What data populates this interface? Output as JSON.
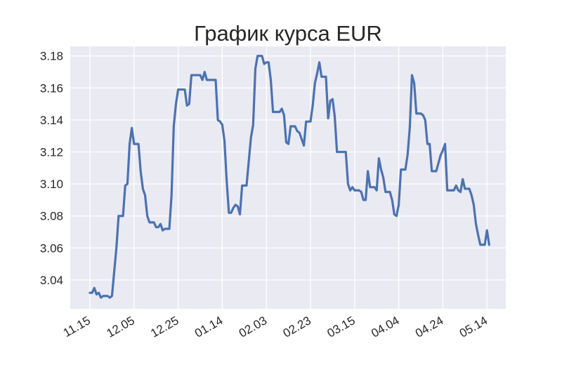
{
  "chart_data": {
    "type": "line",
    "title": "График курса EUR",
    "xlabel": "",
    "ylabel": "",
    "x_tick_labels": [
      "11.15",
      "12.05",
      "12.25",
      "01.14",
      "02.03",
      "02.23",
      "03.15",
      "04.04",
      "04.24",
      "05.14"
    ],
    "y_tick_labels": [
      "3.04",
      "3.06",
      "3.08",
      "3.10",
      "3.12",
      "3.14",
      "3.16",
      "3.18"
    ],
    "y_ticks": [
      3.04,
      3.06,
      3.08,
      3.1,
      3.12,
      3.14,
      3.16,
      3.18
    ],
    "ylim": [
      3.022,
      3.186
    ],
    "grid": true,
    "style": "seaborn-darkgrid",
    "colors": {
      "line": "#4c72b0",
      "background": "#eaeaf2",
      "grid": "#ffffff"
    },
    "series": [
      {
        "x": [
          "2022-11-15",
          "2022-11-16",
          "2022-11-17",
          "2022-11-18",
          "2022-11-19",
          "2022-11-20",
          "2022-11-21",
          "2022-11-22",
          "2022-11-23",
          "2022-11-24",
          "2022-11-25",
          "2022-11-26",
          "2022-11-27",
          "2022-11-28",
          "2022-11-29",
          "2022-11-30",
          "2022-12-01",
          "2022-12-02",
          "2022-12-03",
          "2022-12-04",
          "2022-12-05",
          "2022-12-06",
          "2022-12-07",
          "2022-12-08",
          "2022-12-09",
          "2022-12-10",
          "2022-12-11",
          "2022-12-12",
          "2022-12-13",
          "2022-12-14",
          "2022-12-15",
          "2022-12-16",
          "2022-12-17",
          "2022-12-18",
          "2022-12-19",
          "2022-12-20",
          "2022-12-21",
          "2022-12-22",
          "2022-12-23",
          "2022-12-24",
          "2022-12-25",
          "2022-12-26",
          "2022-12-27",
          "2022-12-28",
          "2022-12-29",
          "2022-12-30",
          "2022-12-31",
          "2023-01-01",
          "2023-01-02",
          "2023-01-03",
          "2023-01-04",
          "2023-01-05",
          "2023-01-06",
          "2023-01-07",
          "2023-01-08",
          "2023-01-09",
          "2023-01-10",
          "2023-01-11",
          "2023-01-12",
          "2023-01-13",
          "2023-01-14",
          "2023-01-15",
          "2023-01-16",
          "2023-01-17",
          "2023-01-18",
          "2023-01-19",
          "2023-01-20",
          "2023-01-21",
          "2023-01-22",
          "2023-01-23",
          "2023-01-24",
          "2023-01-25",
          "2023-01-26",
          "2023-01-27",
          "2023-01-28",
          "2023-01-29",
          "2023-01-30",
          "2023-01-31",
          "2023-02-01",
          "2023-02-02",
          "2023-02-03",
          "2023-02-04",
          "2023-02-05",
          "2023-02-06",
          "2023-02-07",
          "2023-02-08",
          "2023-02-09",
          "2023-02-10",
          "2023-02-11",
          "2023-02-12",
          "2023-02-13",
          "2023-02-14",
          "2023-02-15",
          "2023-02-16",
          "2023-02-17",
          "2023-02-18",
          "2023-02-19",
          "2023-02-20",
          "2023-02-21",
          "2023-02-22",
          "2023-02-23",
          "2023-02-24",
          "2023-02-25",
          "2023-02-26",
          "2023-02-27",
          "2023-02-28",
          "2023-03-01",
          "2023-03-02",
          "2023-03-03",
          "2023-03-04",
          "2023-03-05",
          "2023-03-06",
          "2023-03-07",
          "2023-03-08",
          "2023-03-09",
          "2023-03-10",
          "2023-03-11",
          "2023-03-12",
          "2023-03-13",
          "2023-03-14",
          "2023-03-15",
          "2023-03-16",
          "2023-03-17",
          "2023-03-18",
          "2023-03-19",
          "2023-03-20",
          "2023-03-21",
          "2023-03-22",
          "2023-03-23",
          "2023-03-24",
          "2023-03-25",
          "2023-03-26",
          "2023-03-27",
          "2023-03-28",
          "2023-03-29",
          "2023-03-30",
          "2023-03-31",
          "2023-04-01",
          "2023-04-02",
          "2023-04-03",
          "2023-04-04",
          "2023-04-05",
          "2023-04-06",
          "2023-04-07",
          "2023-04-08",
          "2023-04-09",
          "2023-04-10",
          "2023-04-11",
          "2023-04-12",
          "2023-04-13",
          "2023-04-14",
          "2023-04-15",
          "2023-04-16",
          "2023-04-17",
          "2023-04-18",
          "2023-04-19",
          "2023-04-20",
          "2023-04-21",
          "2023-04-22",
          "2023-04-23",
          "2023-04-24",
          "2023-04-25",
          "2023-04-26",
          "2023-04-27",
          "2023-04-28",
          "2023-04-29",
          "2023-04-30",
          "2023-05-01",
          "2023-05-02",
          "2023-05-03",
          "2023-05-04",
          "2023-05-05",
          "2023-05-06",
          "2023-05-07",
          "2023-05-08",
          "2023-05-09",
          "2023-05-10",
          "2023-05-11",
          "2023-05-12",
          "2023-05-13",
          "2023-05-14",
          "2023-05-15"
        ],
        "values": [
          3.032,
          3.032,
          3.035,
          3.031,
          3.032,
          3.029,
          3.03,
          3.03,
          3.03,
          3.029,
          3.03,
          3.045,
          3.06,
          3.08,
          3.08,
          3.08,
          3.099,
          3.1,
          3.125,
          3.135,
          3.125,
          3.125,
          3.125,
          3.108,
          3.097,
          3.093,
          3.08,
          3.076,
          3.076,
          3.076,
          3.073,
          3.073,
          3.075,
          3.071,
          3.072,
          3.072,
          3.072,
          3.093,
          3.136,
          3.15,
          3.159,
          3.159,
          3.159,
          3.159,
          3.149,
          3.15,
          3.168,
          3.168,
          3.168,
          3.168,
          3.168,
          3.165,
          3.17,
          3.165,
          3.165,
          3.165,
          3.165,
          3.165,
          3.14,
          3.139,
          3.137,
          3.127,
          3.102,
          3.082,
          3.082,
          3.085,
          3.087,
          3.086,
          3.081,
          3.099,
          3.099,
          3.099,
          3.114,
          3.129,
          3.137,
          3.172,
          3.18,
          3.18,
          3.18,
          3.175,
          3.176,
          3.176,
          3.165,
          3.145,
          3.145,
          3.145,
          3.145,
          3.147,
          3.143,
          3.126,
          3.125,
          3.136,
          3.136,
          3.136,
          3.133,
          3.132,
          3.128,
          3.124,
          3.139,
          3.139,
          3.139,
          3.149,
          3.163,
          3.169,
          3.176,
          3.167,
          3.167,
          3.167,
          3.141,
          3.152,
          3.153,
          3.142,
          3.12,
          3.12,
          3.12,
          3.12,
          3.12,
          3.1,
          3.096,
          3.098,
          3.096,
          3.096,
          3.096,
          3.095,
          3.09,
          3.09,
          3.108,
          3.098,
          3.098,
          3.098,
          3.096,
          3.116,
          3.109,
          3.104,
          3.095,
          3.095,
          3.095,
          3.09,
          3.081,
          3.08,
          3.087,
          3.109,
          3.109,
          3.109,
          3.118,
          3.135,
          3.168,
          3.163,
          3.144,
          3.144,
          3.144,
          3.143,
          3.14,
          3.125,
          3.125,
          3.108,
          3.108,
          3.108,
          3.113,
          3.118,
          3.121,
          3.125,
          3.096,
          3.096,
          3.096,
          3.096,
          3.099,
          3.096,
          3.095,
          3.103,
          3.097,
          3.097,
          3.097,
          3.093,
          3.087,
          3.075,
          3.068,
          3.062,
          3.062,
          3.062,
          3.071,
          3.062
        ]
      }
    ]
  }
}
